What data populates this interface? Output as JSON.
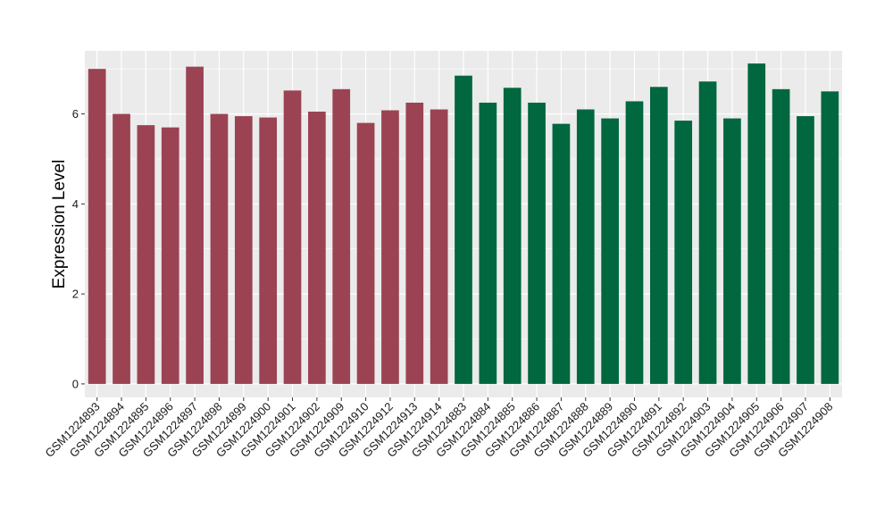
{
  "chart_data": {
    "type": "bar",
    "ylabel": "Expression Level",
    "xlabel": "",
    "ylim": [
      -0.3,
      7.4
    ],
    "yticks": [
      0,
      2,
      4,
      6
    ],
    "grid": true,
    "legend": "none",
    "colors": {
      "group_a": "#9b4352",
      "group_b": "#00673f",
      "panel": "#ebebeb",
      "grid": "#ffffff"
    },
    "categories": [
      "GSM1224893",
      "GSM1224894",
      "GSM1224895",
      "GSM1224896",
      "GSM1224897",
      "GSM1224898",
      "GSM1224899",
      "GSM1224900",
      "GSM1224901",
      "GSM1224902",
      "GSM1224909",
      "GSM1224910",
      "GSM1224912",
      "GSM1224913",
      "GSM1224914",
      "GSM1224883",
      "GSM1224884",
      "GSM1224885",
      "GSM1224886",
      "GSM1224887",
      "GSM1224888",
      "GSM1224889",
      "GSM1224890",
      "GSM1224891",
      "GSM1224892",
      "GSM1224903",
      "GSM1224904",
      "GSM1224905",
      "GSM1224906",
      "GSM1224907",
      "GSM1224908"
    ],
    "values": [
      7.0,
      6.0,
      5.75,
      5.7,
      7.05,
      6.0,
      5.95,
      5.92,
      6.52,
      6.05,
      6.55,
      5.8,
      6.08,
      6.25,
      6.1,
      6.85,
      6.25,
      6.58,
      6.25,
      5.78,
      6.1,
      5.9,
      6.28,
      6.6,
      5.85,
      6.72,
      5.9,
      7.12,
      6.55,
      5.95,
      6.5
    ],
    "groups": [
      "a",
      "a",
      "a",
      "a",
      "a",
      "a",
      "a",
      "a",
      "a",
      "a",
      "a",
      "a",
      "a",
      "a",
      "a",
      "b",
      "b",
      "b",
      "b",
      "b",
      "b",
      "b",
      "b",
      "b",
      "b",
      "b",
      "b",
      "b",
      "b",
      "b",
      "b"
    ]
  }
}
